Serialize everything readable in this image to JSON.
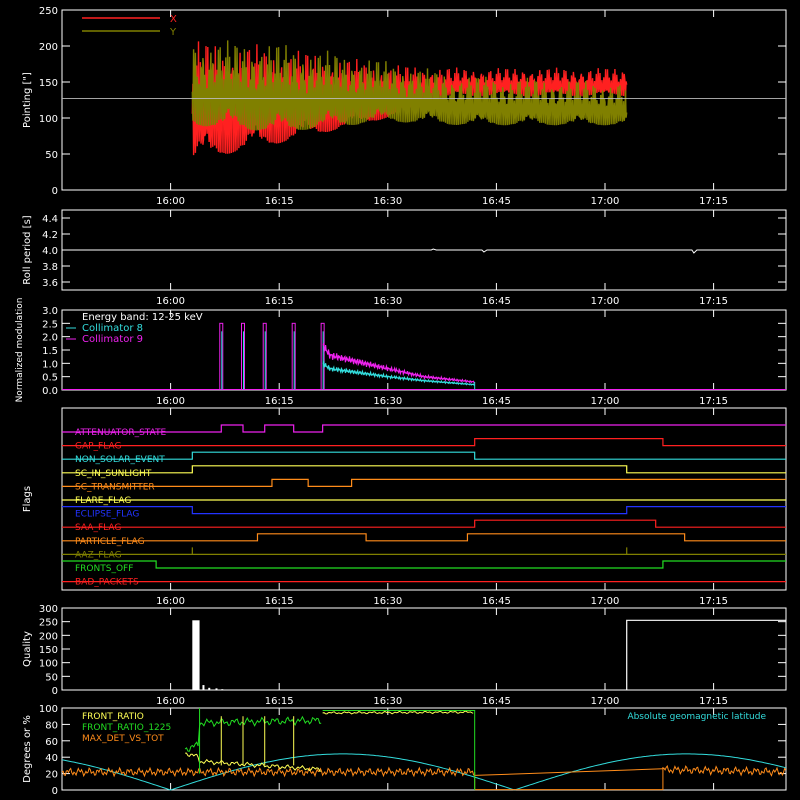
{
  "colors": {
    "background": "#000000",
    "axes": "#ffffff",
    "red": "#ff2020",
    "olive": "#808000",
    "cyan": "#33dddd",
    "magenta": "#ee22ee",
    "orange": "#ff8c1a",
    "yellow": "#ffff55",
    "green": "#22dd22",
    "blue": "#2233ff",
    "white": "#ffffff"
  },
  "time_ticks": [
    "16:00",
    "16:15",
    "16:30",
    "16:45",
    "17:00",
    "17:15"
  ],
  "chart_data": [
    {
      "id": "pointing",
      "type": "line",
      "ylabel": "Pointing [\"]",
      "ylim": [
        0,
        250
      ],
      "yticks": [
        "0",
        "50",
        "100",
        "150",
        "200",
        "250"
      ],
      "legend": [
        "X",
        "Y"
      ],
      "series": [
        {
          "name": "X",
          "color": "red",
          "start": "16:03",
          "end": "17:03",
          "x": [
            "16:03",
            "16:15",
            "16:30",
            "16:40",
            "17:03"
          ],
          "lower": [
            40,
            65,
            100,
            130,
            130
          ],
          "upper": [
            210,
            200,
            175,
            170,
            170
          ]
        },
        {
          "name": "Y",
          "color": "olive",
          "start": "16:03",
          "end": "17:03",
          "x": [
            "16:03",
            "16:15",
            "16:30",
            "16:40",
            "17:03"
          ],
          "lower": [
            90,
            80,
            95,
            90,
            90
          ],
          "upper": [
            210,
            205,
            180,
            160,
            150
          ]
        }
      ],
      "reference_line": 127
    },
    {
      "id": "roll",
      "type": "line",
      "ylabel": "Roll period [s]",
      "ylim": [
        3.5,
        4.5
      ],
      "yticks": [
        "3.6",
        "3.8",
        "4.0",
        "4.2",
        "4.4"
      ],
      "series": [
        {
          "name": "",
          "color": "white",
          "value": 4.0
        }
      ]
    },
    {
      "id": "modulation",
      "type": "line",
      "ylabel": "Normalized modulation",
      "ylim": [
        0,
        3
      ],
      "yticks": [
        "0.0",
        "0.5",
        "1.0",
        "1.5",
        "2.0",
        "2.5",
        "3.0"
      ],
      "legend": [
        "Energy band: 12-25 keV",
        "Collimator 8",
        "Collimator 9"
      ],
      "series": [
        {
          "name": "Collimator 8",
          "color": "cyan",
          "x": [
            "16:21",
            "16:22",
            "16:30",
            "16:35",
            "16:42"
          ],
          "y": [
            1.0,
            0.8,
            0.5,
            0.35,
            0.2
          ]
        },
        {
          "name": "Collimator 9",
          "color": "magenta",
          "x": [
            "16:21",
            "16:22",
            "16:30",
            "16:35",
            "16:42"
          ],
          "y": [
            1.7,
            1.3,
            0.8,
            0.5,
            0.3
          ]
        }
      ],
      "spikes": [
        "16:07",
        "16:10",
        "16:13",
        "16:17",
        "16:21"
      ]
    },
    {
      "id": "flags",
      "type": "table",
      "ylabel": "Flags",
      "rows": [
        {
          "label": "ATTENUATOR_STATE",
          "color": "magenta"
        },
        {
          "label": "GAP_FLAG",
          "color": "red"
        },
        {
          "label": "NON_SOLAR_EVENT",
          "color": "cyan"
        },
        {
          "label": "SC_IN_SUNLIGHT",
          "color": "yellow"
        },
        {
          "label": "SC_TRANSMITTER",
          "color": "orange"
        },
        {
          "label": "FLARE_FLAG",
          "color": "yellow"
        },
        {
          "label": "ECLIPSE_FLAG",
          "color": "blue"
        },
        {
          "label": "SAA_FLAG",
          "color": "red"
        },
        {
          "label": "PARTICLE_FLAG",
          "color": "orange"
        },
        {
          "label": "AAZ_FLAG",
          "color": "olive"
        },
        {
          "label": "FRONTS_OFF",
          "color": "green"
        },
        {
          "label": "BAD_PACKETS",
          "color": "red"
        }
      ]
    },
    {
      "id": "quality",
      "type": "bar",
      "ylabel": "Quality",
      "ylim": [
        0,
        300
      ],
      "yticks": [
        "0",
        "50",
        "100",
        "150",
        "200",
        "250",
        "300"
      ],
      "series": [
        {
          "name": "",
          "color": "white"
        }
      ]
    },
    {
      "id": "ratios",
      "type": "line",
      "ylabel": "Degrees or %",
      "ylim": [
        0,
        100
      ],
      "yticks": [
        "0",
        "20",
        "40",
        "60",
        "80",
        "100"
      ],
      "legend": [
        "FRONT_RATIO",
        "FRONT_RATIO_1225",
        "MAX_DET_VS_TOT"
      ],
      "annotation": "Absolute geomagnetic latitude",
      "series": [
        {
          "name": "FRONT_RATIO",
          "color": "yellow"
        },
        {
          "name": "FRONT_RATIO_1225",
          "color": "green"
        },
        {
          "name": "MAX_DET_VS_TOT",
          "color": "orange"
        },
        {
          "name": "Absolute geomagnetic latitude",
          "color": "cyan"
        }
      ]
    }
  ]
}
